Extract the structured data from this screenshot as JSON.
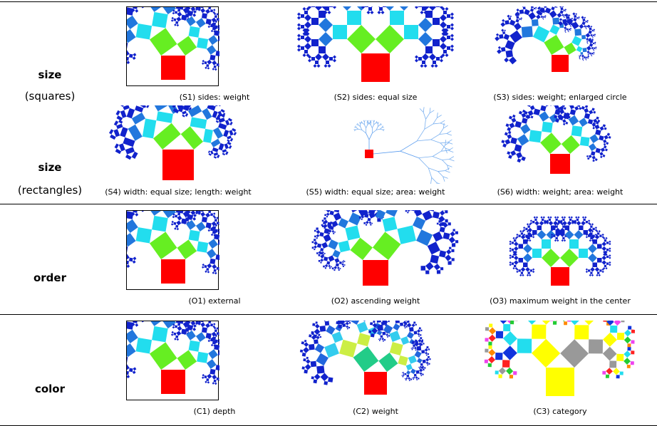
{
  "rows": {
    "size_squares": {
      "label1": "size",
      "label2": "(squares)"
    },
    "size_rect": {
      "label1": "size",
      "label2": "(rectangles)"
    },
    "order": {
      "label1": "order"
    },
    "color": {
      "label1": "color"
    }
  },
  "captions": {
    "S1": "(S1) sides: weight",
    "S2": "(S2) sides: equal size",
    "S3": "(S3) sides: weight; enlarged circle",
    "S4": "(S4) width: equal size; length: weight",
    "S5": "(S5) width: equal size; area: weight",
    "S6": "(S6) width: weight; area: weight",
    "O1": "(O1) external",
    "O2": "(O2) ascending weight",
    "O3": "(O3) maximum weight in the center",
    "C1": "(C1) depth",
    "C2": "(C2) weight",
    "C3": "(C3) category"
  },
  "colors": {
    "trunk": "#ff0000",
    "level1": "#66ee22",
    "level2": "#22ddee",
    "level3": "#2277dd",
    "level4": "#1122cc",
    "c3_trunk": "#ffff00"
  }
}
